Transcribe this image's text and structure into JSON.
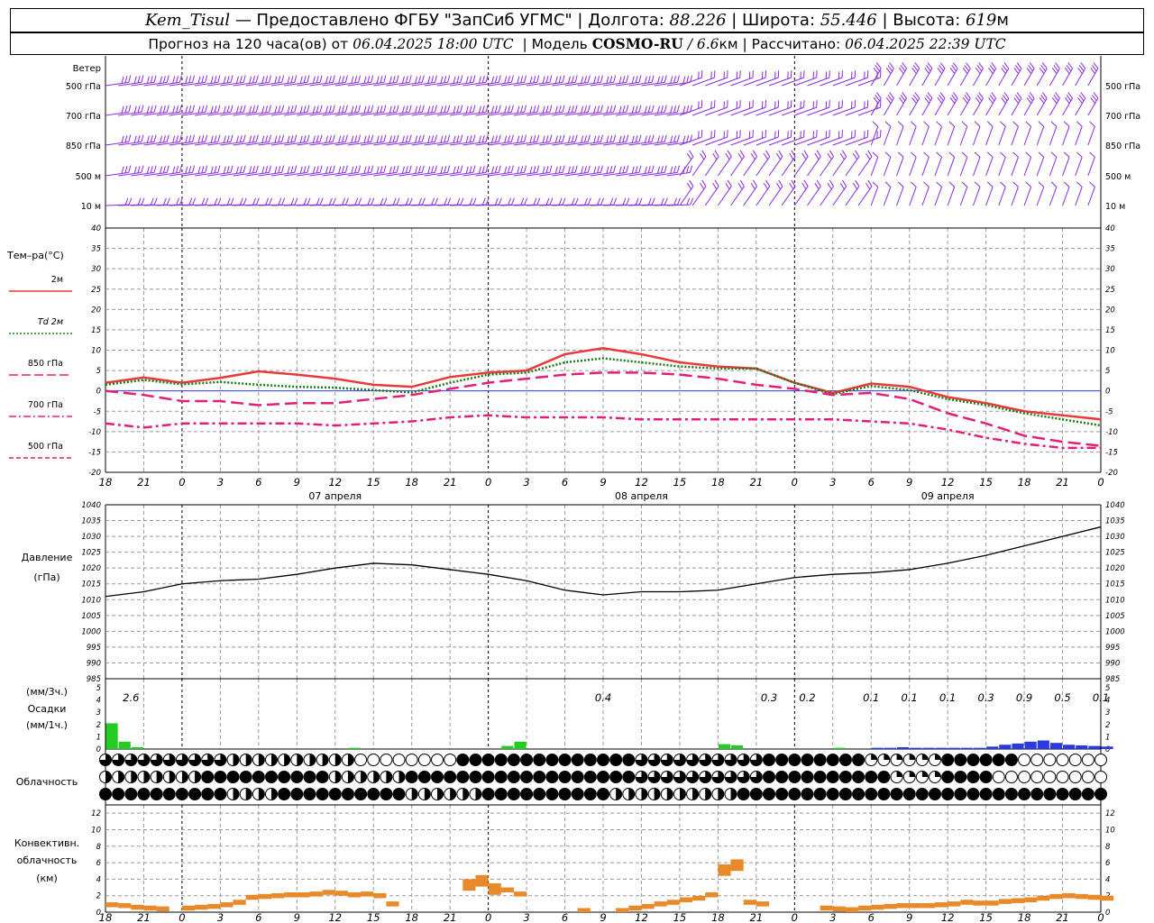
{
  "header": {
    "station": "Kem_Tisul",
    "provider": " — Предоставлено ФГБУ \"ЗапСиб УГМС\" | Долгота: ",
    "longitude": "88.226",
    "lat_label": " | Широта: ",
    "latitude": "55.446",
    "alt_label": " | Высота: ",
    "altitude": "619",
    "alt_unit": "м",
    "forecast_label": "Прогноз на 120 часа(ов) от ",
    "forecast_time": "06.04.2025 18:00 UTC",
    "model_label": "  | Модель ",
    "model_name": "COSMO-RU",
    "model_res": " / 6.6",
    "model_res_unit": "км",
    "calc_label": " | Рассчитано: ",
    "calc_time": "06.04.2025 22:39 UTC"
  },
  "wind_panel": {
    "title": "Ветер",
    "levels": [
      "500 гПа",
      "700 гПа",
      "850 гПа",
      "500 м",
      "10 м"
    ],
    "color": "#8a2be2"
  },
  "temp_panel": {
    "title": "Тем–ра(°C)",
    "legend": [
      {
        "label": "2м",
        "color": "#e83a3a",
        "style": "solid"
      },
      {
        "label": "Td 2м",
        "color": "#1a7a1a",
        "style": "dotted"
      },
      {
        "label": "850 гПа",
        "color": "#e0207a",
        "style": "longdash"
      },
      {
        "label": "700 гПа",
        "color": "#e0207a",
        "style": "dashdot"
      },
      {
        "label": "500 гПа",
        "color": "#e0207a",
        "style": "dash"
      }
    ],
    "yticks": [
      "40",
      "35",
      "30",
      "25",
      "20",
      "15",
      "10",
      "5",
      "0",
      "-5",
      "-10",
      "-15",
      "-20"
    ]
  },
  "time_axis": {
    "hour_labels": [
      "18",
      "21",
      "0",
      "3",
      "6",
      "9",
      "12",
      "15",
      "18",
      "21",
      "0",
      "3",
      "6",
      "9",
      "12",
      "15",
      "18",
      "21",
      "0",
      "3",
      "6",
      "9",
      "12",
      "15",
      "18",
      "21",
      "0"
    ],
    "dates": [
      "07 апреля",
      "08 апреля",
      "09 апреля"
    ]
  },
  "pressure_panel": {
    "title": "Давление",
    "unit": "(гПа)",
    "yticks": [
      "1040",
      "1035",
      "1030",
      "1025",
      "1020",
      "1015",
      "1010",
      "1005",
      "1000",
      "995",
      "990",
      "985"
    ]
  },
  "precip_panel": {
    "title_top": "(мм/3ч.)",
    "title_mid": "Осадки",
    "title_bot": "(мм/1ч.)",
    "yticks": [
      "5",
      "4",
      "3",
      "2",
      "1",
      "0"
    ],
    "totals": [
      "2.6",
      "0.4",
      "0.3",
      "0.2",
      "0.1",
      "0.1",
      "0.1",
      "0.3",
      "0.9",
      "0.5",
      "0.1"
    ],
    "rain_color": "#22cc22",
    "snow_color": "#2a3adf"
  },
  "cloud_panel": {
    "title": "Облачность"
  },
  "conv_panel": {
    "title_1": "Конвективн.",
    "title_2": "облачность",
    "title_3": "(км)",
    "yticks": [
      "12",
      "10",
      "8",
      "6",
      "4",
      "2",
      "0"
    ],
    "color": "#e88a2a"
  },
  "chart_data": {
    "type": "line",
    "x_hours": [
      0,
      3,
      6,
      9,
      12,
      15,
      18,
      21,
      24,
      27,
      30,
      33,
      36,
      39,
      42,
      45,
      48,
      51,
      54,
      57,
      60,
      63,
      66,
      69,
      72,
      75,
      78
    ],
    "x_labels": [
      "18",
      "21",
      "0",
      "3",
      "6",
      "9",
      "12",
      "15",
      "18",
      "21",
      "0",
      "3",
      "6",
      "9",
      "12",
      "15",
      "18",
      "21",
      "0",
      "3",
      "6",
      "9",
      "12",
      "15",
      "18",
      "21",
      "0"
    ],
    "temperature": {
      "ylim": [
        -20,
        40
      ],
      "series": [
        {
          "name": "2м",
          "values": [
            2,
            3.3,
            2,
            3.2,
            4.8,
            4,
            3,
            1.5,
            1,
            3.4,
            4.5,
            5,
            9,
            10.5,
            9,
            7,
            6,
            5.5,
            2,
            -0.5,
            1.8,
            1,
            -1.5,
            -3,
            -5,
            -6,
            -7
          ]
        },
        {
          "name": "Td 2м",
          "values": [
            1.5,
            2.7,
            1.6,
            2.2,
            1.5,
            1,
            0.8,
            0.2,
            -0.4,
            2,
            4,
            4.5,
            7,
            8,
            7,
            6,
            5.5,
            5.5,
            2,
            -0.8,
            1.2,
            0.2,
            -2,
            -3.5,
            -5.5,
            -7,
            -8.5
          ]
        },
        {
          "name": "850 гПа",
          "values": [
            0,
            -1,
            -2.5,
            -2.5,
            -3.5,
            -3,
            -3,
            -2,
            -1,
            0.5,
            2,
            3,
            4,
            4.5,
            4.5,
            4,
            3,
            1.5,
            0.5,
            -1,
            -0.5,
            -2,
            -5.5,
            -8,
            -11,
            -12.5,
            -13.5
          ]
        },
        {
          "name": "700 гПа",
          "values": [
            -8,
            -9,
            -8,
            -8,
            -8,
            -8,
            -8.5,
            -8,
            -7.5,
            -6.5,
            -6,
            -6.5,
            -6.5,
            -6.5,
            -7,
            -7,
            -7,
            -7,
            -7,
            -7,
            -7.5,
            -8,
            -9.5,
            -11.5,
            -13,
            -14,
            -14
          ]
        }
      ]
    },
    "pressure": {
      "ylim": [
        985,
        1040
      ],
      "values": [
        1011,
        1012.5,
        1015,
        1016,
        1016.5,
        1018,
        1020,
        1021.5,
        1021,
        1019.5,
        1018,
        1016,
        1013,
        1011.5,
        1012.5,
        1012.5,
        1013,
        1015,
        1017,
        1018,
        1018.5,
        1019.5,
        1021.5,
        1024,
        1027,
        1030,
        1033
      ]
    },
    "precip_3h": {
      "x_hours": [
        2,
        39,
        52,
        55,
        60,
        63,
        66,
        69,
        72,
        75,
        78
      ],
      "values": [
        2.6,
        0.4,
        0.3,
        0.2,
        0.1,
        0.1,
        0.1,
        0.3,
        0.9,
        0.5,
        0.1
      ]
    },
    "precip_1h": {
      "ylim": [
        0,
        5
      ],
      "rain": [
        [
          0,
          2.1
        ],
        [
          1,
          0.6
        ],
        [
          2,
          0.15
        ],
        [
          19,
          0.1
        ],
        [
          31,
          0.25
        ],
        [
          32,
          0.6
        ],
        [
          48,
          0.4
        ],
        [
          49,
          0.3
        ],
        [
          57,
          0.1
        ]
      ],
      "snow": [
        [
          60,
          0.1
        ],
        [
          61,
          0.1
        ],
        [
          62,
          0.15
        ],
        [
          63,
          0.1
        ],
        [
          64,
          0.1
        ],
        [
          65,
          0.1
        ],
        [
          66,
          0.1
        ],
        [
          67,
          0.1
        ],
        [
          68,
          0.1
        ],
        [
          69,
          0.2
        ],
        [
          70,
          0.35
        ],
        [
          71,
          0.45
        ],
        [
          72,
          0.6
        ],
        [
          73,
          0.7
        ],
        [
          74,
          0.5
        ],
        [
          75,
          0.35
        ],
        [
          76,
          0.3
        ],
        [
          77,
          0.25
        ],
        [
          78,
          0.2
        ]
      ]
    },
    "convective_cloud": {
      "ylim": [
        0,
        13
      ],
      "values": [
        [
          0,
          1.2
        ],
        [
          1,
          1.1
        ],
        [
          2,
          0.9
        ],
        [
          3,
          0.8
        ],
        [
          4,
          0.7
        ],
        [
          6,
          0.8
        ],
        [
          7,
          0.9
        ],
        [
          8,
          1
        ],
        [
          9,
          1.2
        ],
        [
          10,
          1.5
        ],
        [
          11,
          2.1
        ],
        [
          12,
          2.2
        ],
        [
          13,
          2.3
        ],
        [
          14,
          2.4
        ],
        [
          15,
          2.4
        ],
        [
          16,
          2.5
        ],
        [
          17,
          2.7
        ],
        [
          18,
          2.6
        ],
        [
          19,
          2.4
        ],
        [
          20,
          2.5
        ],
        [
          21,
          2.3
        ],
        [
          22,
          1.3
        ],
        [
          28,
          4
        ],
        [
          29,
          4.5
        ],
        [
          30,
          3.5
        ],
        [
          31,
          3
        ],
        [
          32,
          2.5
        ],
        [
          37,
          0.5
        ],
        [
          40,
          0.5
        ],
        [
          41,
          0.8
        ],
        [
          42,
          1
        ],
        [
          43,
          1.3
        ],
        [
          44,
          1.5
        ],
        [
          45,
          1.8
        ],
        [
          46,
          2
        ],
        [
          47,
          2.4
        ],
        [
          48,
          5.8
        ],
        [
          49,
          6.4
        ],
        [
          50,
          1.5
        ],
        [
          51,
          1.3
        ],
        [
          56,
          0.8
        ],
        [
          57,
          0.7
        ],
        [
          58,
          0.6
        ],
        [
          59,
          0.8
        ],
        [
          60,
          0.9
        ],
        [
          61,
          1
        ],
        [
          62,
          1.1
        ],
        [
          63,
          1.1
        ],
        [
          64,
          1.1
        ],
        [
          65,
          1.2
        ],
        [
          66,
          1.3
        ],
        [
          67,
          1.5
        ],
        [
          68,
          1.4
        ],
        [
          69,
          1.4
        ],
        [
          70,
          1.6
        ],
        [
          71,
          1.7
        ],
        [
          72,
          1.8
        ],
        [
          73,
          2
        ],
        [
          74,
          2.2
        ],
        [
          75,
          2.3
        ],
        [
          76,
          2.2
        ],
        [
          77,
          2.1
        ],
        [
          78,
          2
        ]
      ]
    }
  }
}
